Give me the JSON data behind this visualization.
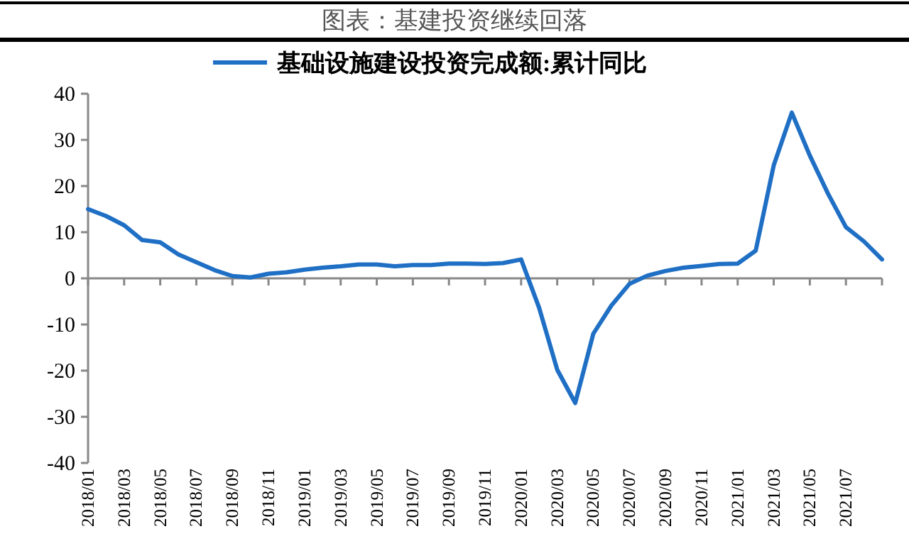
{
  "chart_data": {
    "type": "line",
    "title": "图表：基建投资继续回落",
    "categories": [
      "2018/01",
      null,
      "2018/03",
      null,
      "2018/05",
      null,
      "2018/07",
      null,
      "2018/09",
      null,
      "2018/11",
      null,
      "2019/01",
      null,
      "2019/03",
      null,
      "2019/05",
      null,
      "2019/07",
      null,
      "2019/09",
      null,
      "2019/11",
      null,
      "2020/01",
      null,
      "2020/03",
      null,
      "2020/05",
      null,
      "2020/07",
      null,
      "2020/09",
      null,
      "2020/11",
      null,
      "2021/01",
      null,
      "2021/03",
      null,
      "2021/05",
      null,
      "2021/07",
      null,
      null
    ],
    "series": [
      {
        "name": "基础设施建设投资完成额:累计同比",
        "color": "#1f6fc5",
        "values": [
          15.0,
          13.5,
          11.5,
          8.3,
          7.8,
          5.2,
          3.5,
          1.8,
          0.5,
          0.2,
          1.0,
          1.3,
          1.9,
          2.3,
          2.6,
          3.0,
          3.0,
          2.6,
          2.9,
          2.9,
          3.2,
          3.2,
          3.1,
          3.3,
          4.1,
          -6.4,
          -19.8,
          -27,
          -12,
          -5.9,
          -1.2,
          0.6,
          1.6,
          2.3,
          2.7,
          3.1,
          3.2,
          6.0,
          24.5,
          35.9,
          26.6,
          18.4,
          11.1,
          8.0,
          4.1
        ]
      }
    ],
    "ylim": [
      -40,
      40
    ],
    "yticks": [
      -40,
      -30,
      -20,
      -10,
      0,
      10,
      20,
      30,
      40
    ],
    "legend": "top"
  }
}
